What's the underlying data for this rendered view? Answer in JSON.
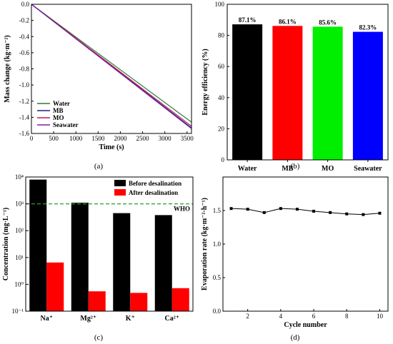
{
  "panel_labels": [
    "(a)",
    "(b)",
    "(c)",
    "(d)"
  ],
  "chart_data": [
    {
      "type": "line",
      "panel": "(a)",
      "xlabel": "Time (s)",
      "ylabel": "Mass change (kg·m⁻²)",
      "xlim": [
        0,
        3600
      ],
      "ylim": [
        -1.6,
        0.0
      ],
      "xticks": [
        0,
        500,
        1000,
        1500,
        2000,
        2500,
        3000,
        3500
      ],
      "yticks": [
        0.0,
        -0.2,
        -0.4,
        -0.6,
        -0.8,
        -1.0,
        -1.2,
        -1.4,
        -1.6
      ],
      "legend_position": "bottom-left",
      "series": [
        {
          "name": "Water",
          "color": "#2e7d32",
          "x": [
            0,
            3600
          ],
          "y": [
            0,
            -1.46
          ]
        },
        {
          "name": "MB",
          "color": "#1a237e",
          "x": [
            0,
            3600
          ],
          "y": [
            0,
            -1.53
          ]
        },
        {
          "name": "MO",
          "color": "#c2185b",
          "x": [
            0,
            3600
          ],
          "y": [
            0,
            -1.51
          ]
        },
        {
          "name": "Seawater",
          "color": "#7b1fa2",
          "x": [
            0,
            3600
          ],
          "y": [
            0,
            -1.54
          ]
        }
      ]
    },
    {
      "type": "bar",
      "panel": "(b)",
      "ylabel": "Energy efficiency (%)",
      "ylim": [
        0,
        100
      ],
      "yticks": [
        0,
        20,
        40,
        60,
        80,
        100
      ],
      "categories": [
        "Water",
        "MB",
        "MO",
        "Seawater"
      ],
      "values": [
        87.1,
        86.1,
        85.6,
        82.3
      ],
      "data_labels": [
        "87.1%",
        "86.1%",
        "85.6%",
        "82.3%"
      ],
      "colors": [
        "#000000",
        "#ff0000",
        "#00ee00",
        "#0000ff"
      ]
    },
    {
      "type": "bar",
      "panel": "(c)",
      "scale": "log",
      "ylabel": "Concentration (mg·L⁻¹)",
      "ylim": [
        0.1,
        10000
      ],
      "yticks": [
        "10⁻¹",
        "10⁰",
        "10¹",
        "10²",
        "10³",
        "10⁴"
      ],
      "categories": [
        "Na⁺",
        "Mg²⁺",
        "K⁺",
        "Ca²⁺"
      ],
      "legend_position": "top-right",
      "reference_line": {
        "label": "WHO",
        "value": 1000,
        "color": "#2e9e2e"
      },
      "series": [
        {
          "name": "Before desalination",
          "color": "#000000",
          "values": [
            8000,
            1100,
            450,
            380
          ]
        },
        {
          "name": "After desalination",
          "color": "#ff0000",
          "values": [
            6.5,
            0.55,
            0.48,
            0.72
          ]
        }
      ]
    },
    {
      "type": "line",
      "panel": "(d)",
      "xlabel": "Cycle number",
      "ylabel": "Evaporation rate (kg·m⁻²·h⁻¹)",
      "xlim": [
        0.5,
        10.5
      ],
      "ylim": [
        0,
        2.0
      ],
      "xticks": [
        2,
        4,
        6,
        8,
        10
      ],
      "yticks": [
        0.0,
        0.5,
        1.0,
        1.5
      ],
      "x": [
        1,
        2,
        3,
        4,
        5,
        6,
        7,
        8,
        9,
        10
      ],
      "y": [
        1.53,
        1.52,
        1.47,
        1.53,
        1.52,
        1.49,
        1.47,
        1.45,
        1.44,
        1.46
      ],
      "color": "#000000"
    }
  ]
}
